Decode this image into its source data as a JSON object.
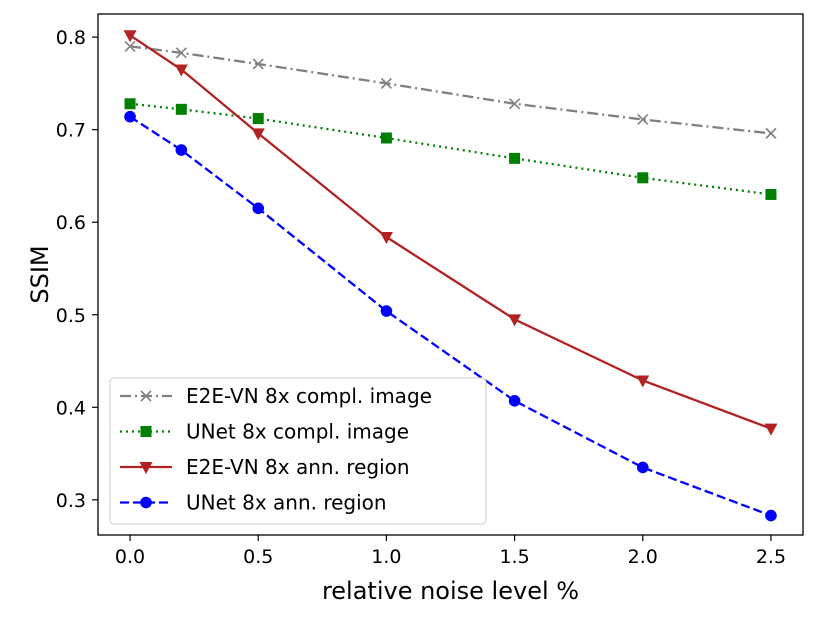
{
  "chart_data": {
    "type": "line",
    "xlabel": "relative noise level %",
    "ylabel": "SSIM",
    "xlim": [
      -0.125,
      2.625
    ],
    "ylim": [
      0.262,
      0.825
    ],
    "xticks": [
      0.0,
      0.5,
      1.0,
      1.5,
      2.0,
      2.5
    ],
    "xtick_labels": [
      "0.0",
      "0.5",
      "1.0",
      "1.5",
      "2.0",
      "2.5"
    ],
    "yticks": [
      0.3,
      0.4,
      0.5,
      0.6,
      0.7,
      0.8
    ],
    "ytick_labels": [
      "0.3",
      "0.4",
      "0.5",
      "0.6",
      "0.7",
      "0.8"
    ],
    "grid": false,
    "legend_position": "lower-left",
    "x": [
      0.0,
      0.2,
      0.5,
      1.0,
      1.5,
      2.0,
      2.5
    ],
    "series": [
      {
        "name": "E2E-VN 8x compl. image",
        "values": [
          0.79,
          0.783,
          0.771,
          0.75,
          0.728,
          0.711,
          0.696
        ],
        "color": "#808080",
        "line_style": "dashdot",
        "marker": "x"
      },
      {
        "name": "UNet 8x compl. image",
        "values": [
          0.728,
          0.722,
          0.712,
          0.691,
          0.669,
          0.648,
          0.63
        ],
        "color": "#008000",
        "line_style": "dotted",
        "marker": "square"
      },
      {
        "name": "E2E-VN 8x ann. region",
        "values": [
          0.802,
          0.765,
          0.696,
          0.584,
          0.495,
          0.429,
          0.377
        ],
        "color": "#b22222",
        "line_style": "solid",
        "marker": "triangle-down"
      },
      {
        "name": "UNet 8x ann. region",
        "values": [
          0.714,
          0.678,
          0.615,
          0.504,
          0.407,
          0.335,
          0.283
        ],
        "color": "#0000ff",
        "line_style": "dashed",
        "marker": "circle"
      }
    ]
  }
}
